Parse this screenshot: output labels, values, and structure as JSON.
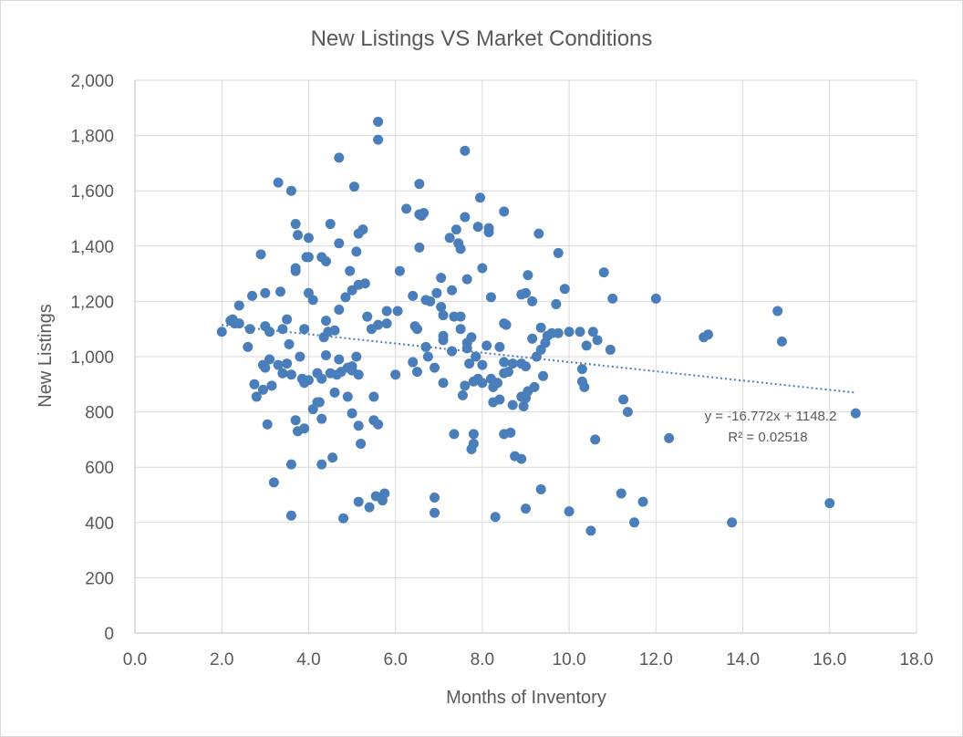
{
  "chart_data": {
    "type": "scatter",
    "title": "New Listings VS Market Conditions",
    "xlabel": "Months of Inventory",
    "ylabel": "New Listings",
    "xlim": [
      0,
      18
    ],
    "ylim": [
      0,
      2000
    ],
    "x_ticks": [
      "0.0",
      "2.0",
      "4.0",
      "6.0",
      "8.0",
      "10.0",
      "12.0",
      "14.0",
      "16.0",
      "18.0"
    ],
    "y_ticks": [
      "0",
      "200",
      "400",
      "600",
      "800",
      "1,000",
      "1,200",
      "1,400",
      "1,600",
      "1,800",
      "2,000"
    ],
    "x_tick_values": [
      0,
      2,
      4,
      6,
      8,
      10,
      12,
      14,
      16,
      18
    ],
    "y_tick_values": [
      0,
      200,
      400,
      600,
      800,
      1000,
      1200,
      1400,
      1600,
      1800,
      2000
    ],
    "grid": true,
    "legend": "none",
    "marker_color": "#4a7ebb",
    "trendline": {
      "type": "linear",
      "slope": -16.772,
      "intercept": 1148.2,
      "x_range": [
        2.0,
        16.6
      ],
      "color": "#4a7ebb",
      "equation_label": "y = -16.772x + 1148.2",
      "r2_label": "R² = 0.02518"
    },
    "points": [
      [
        2.0,
        1090
      ],
      [
        2.2,
        1130
      ],
      [
        2.25,
        1135
      ],
      [
        2.3,
        1120
      ],
      [
        2.4,
        1185
      ],
      [
        2.4,
        1120
      ],
      [
        2.6,
        1035
      ],
      [
        2.65,
        1100
      ],
      [
        2.7,
        1220
      ],
      [
        2.75,
        900
      ],
      [
        2.8,
        855
      ],
      [
        2.9,
        1370
      ],
      [
        2.95,
        970
      ],
      [
        2.95,
        880
      ],
      [
        3.0,
        960
      ],
      [
        3.0,
        1230
      ],
      [
        3.0,
        1110
      ],
      [
        3.05,
        755
      ],
      [
        3.1,
        1090
      ],
      [
        3.1,
        990
      ],
      [
        3.15,
        895
      ],
      [
        3.2,
        545
      ],
      [
        3.3,
        970
      ],
      [
        3.3,
        1630
      ],
      [
        3.35,
        1235
      ],
      [
        3.4,
        1100
      ],
      [
        3.4,
        940
      ],
      [
        3.5,
        1135
      ],
      [
        3.5,
        975
      ],
      [
        3.55,
        1045
      ],
      [
        3.6,
        1600
      ],
      [
        3.6,
        935
      ],
      [
        3.6,
        610
      ],
      [
        3.6,
        425
      ],
      [
        3.7,
        1480
      ],
      [
        3.7,
        1320
      ],
      [
        3.7,
        1310
      ],
      [
        3.7,
        770
      ],
      [
        3.75,
        1440
      ],
      [
        3.75,
        730
      ],
      [
        3.8,
        1000
      ],
      [
        3.85,
        920
      ],
      [
        3.9,
        1100
      ],
      [
        3.9,
        905
      ],
      [
        3.9,
        740
      ],
      [
        3.95,
        1360
      ],
      [
        4.0,
        1430
      ],
      [
        4.0,
        1360
      ],
      [
        4.0,
        1230
      ],
      [
        4.0,
        915
      ],
      [
        4.1,
        1205
      ],
      [
        4.1,
        810
      ],
      [
        4.2,
        940
      ],
      [
        4.2,
        835
      ],
      [
        4.25,
        835
      ],
      [
        4.3,
        1360
      ],
      [
        4.3,
        920
      ],
      [
        4.3,
        775
      ],
      [
        4.3,
        610
      ],
      [
        4.35,
        1070
      ],
      [
        4.4,
        1345
      ],
      [
        4.4,
        1130
      ],
      [
        4.4,
        1005
      ],
      [
        4.45,
        1090
      ],
      [
        4.5,
        1480
      ],
      [
        4.5,
        940
      ],
      [
        4.55,
        635
      ],
      [
        4.6,
        870
      ],
      [
        4.6,
        1095
      ],
      [
        4.65,
        935
      ],
      [
        4.7,
        1720
      ],
      [
        4.7,
        1410
      ],
      [
        4.7,
        1170
      ],
      [
        4.7,
        990
      ],
      [
        4.75,
        945
      ],
      [
        4.8,
        415
      ],
      [
        4.85,
        1215
      ],
      [
        4.9,
        960
      ],
      [
        4.9,
        855
      ],
      [
        4.95,
        1310
      ],
      [
        5.0,
        1240
      ],
      [
        5.0,
        965
      ],
      [
        5.0,
        950
      ],
      [
        5.0,
        795
      ],
      [
        5.05,
        1615
      ],
      [
        5.1,
        1380
      ],
      [
        5.1,
        1000
      ],
      [
        5.15,
        1260
      ],
      [
        5.15,
        1445
      ],
      [
        5.15,
        935
      ],
      [
        5.15,
        750
      ],
      [
        5.15,
        475
      ],
      [
        5.2,
        685
      ],
      [
        5.25,
        1460
      ],
      [
        5.3,
        1265
      ],
      [
        5.35,
        1145
      ],
      [
        5.4,
        455
      ],
      [
        5.45,
        1100
      ],
      [
        5.5,
        855
      ],
      [
        5.5,
        770
      ],
      [
        5.55,
        495
      ],
      [
        5.6,
        1850
      ],
      [
        5.6,
        1785
      ],
      [
        5.6,
        1115
      ],
      [
        5.6,
        755
      ],
      [
        5.7,
        480
      ],
      [
        5.75,
        505
      ],
      [
        5.8,
        1165
      ],
      [
        5.8,
        1120
      ],
      [
        6.0,
        935
      ],
      [
        6.05,
        1165
      ],
      [
        6.1,
        1310
      ],
      [
        6.25,
        1535
      ],
      [
        6.4,
        980
      ],
      [
        6.4,
        1220
      ],
      [
        6.45,
        1110
      ],
      [
        6.5,
        1100
      ],
      [
        6.5,
        945
      ],
      [
        6.55,
        1395
      ],
      [
        6.55,
        1625
      ],
      [
        6.55,
        1515
      ],
      [
        6.6,
        1510
      ],
      [
        6.65,
        1520
      ],
      [
        6.7,
        1205
      ],
      [
        6.7,
        1035
      ],
      [
        6.75,
        1000
      ],
      [
        6.8,
        1200
      ],
      [
        6.9,
        960
      ],
      [
        6.9,
        490
      ],
      [
        6.95,
        1230
      ],
      [
        6.9,
        435
      ],
      [
        7.05,
        1285
      ],
      [
        7.05,
        1180
      ],
      [
        7.1,
        1150
      ],
      [
        7.1,
        1075
      ],
      [
        7.1,
        1060
      ],
      [
        7.1,
        905
      ],
      [
        7.25,
        1430
      ],
      [
        7.3,
        1240
      ],
      [
        7.35,
        1145
      ],
      [
        7.35,
        720
      ],
      [
        7.3,
        1020
      ],
      [
        7.4,
        1460
      ],
      [
        7.45,
        1410
      ],
      [
        7.5,
        1390
      ],
      [
        7.5,
        1145
      ],
      [
        7.5,
        1100
      ],
      [
        7.55,
        860
      ],
      [
        7.6,
        1505
      ],
      [
        7.6,
        1745
      ],
      [
        7.6,
        895
      ],
      [
        7.65,
        1280
      ],
      [
        7.65,
        1050
      ],
      [
        7.65,
        1030
      ],
      [
        7.7,
        975
      ],
      [
        7.75,
        665
      ],
      [
        7.75,
        1070
      ],
      [
        7.8,
        685
      ],
      [
        7.8,
        720
      ],
      [
        7.8,
        910
      ],
      [
        7.85,
        1000
      ],
      [
        7.9,
        1470
      ],
      [
        7.9,
        920
      ],
      [
        7.95,
        1575
      ],
      [
        8.0,
        1320
      ],
      [
        8.0,
        970
      ],
      [
        8.0,
        905
      ],
      [
        8.1,
        1040
      ],
      [
        8.15,
        1450
      ],
      [
        8.15,
        1465
      ],
      [
        8.2,
        1215
      ],
      [
        8.2,
        920
      ],
      [
        8.25,
        835
      ],
      [
        8.25,
        890
      ],
      [
        8.3,
        420
      ],
      [
        8.35,
        905
      ],
      [
        8.4,
        1035
      ],
      [
        8.4,
        845
      ],
      [
        8.5,
        1525
      ],
      [
        8.5,
        1120
      ],
      [
        8.55,
        1115
      ],
      [
        8.5,
        980
      ],
      [
        8.5,
        940
      ],
      [
        8.5,
        720
      ],
      [
        8.6,
        945
      ],
      [
        8.65,
        725
      ],
      [
        8.7,
        975
      ],
      [
        8.7,
        825
      ],
      [
        8.75,
        640
      ],
      [
        8.9,
        975
      ],
      [
        8.9,
        855
      ],
      [
        8.9,
        630
      ],
      [
        8.9,
        1225
      ],
      [
        8.95,
        820
      ],
      [
        9.0,
        1230
      ],
      [
        9.0,
        965
      ],
      [
        9.0,
        850
      ],
      [
        9.0,
        450
      ],
      [
        9.05,
        1295
      ],
      [
        9.05,
        875
      ],
      [
        9.15,
        1200
      ],
      [
        9.15,
        1065
      ],
      [
        9.2,
        890
      ],
      [
        9.25,
        1000
      ],
      [
        9.3,
        1445
      ],
      [
        9.35,
        520
      ],
      [
        9.35,
        1105
      ],
      [
        9.35,
        1025
      ],
      [
        9.4,
        930
      ],
      [
        9.45,
        1050
      ],
      [
        9.5,
        1075
      ],
      [
        9.6,
        1085
      ],
      [
        9.7,
        1190
      ],
      [
        9.75,
        1375
      ],
      [
        9.75,
        1085
      ],
      [
        9.9,
        1245
      ],
      [
        10.0,
        1090
      ],
      [
        10.0,
        440
      ],
      [
        10.25,
        1090
      ],
      [
        10.3,
        955
      ],
      [
        10.3,
        910
      ],
      [
        10.35,
        890
      ],
      [
        10.4,
        1040
      ],
      [
        10.5,
        370
      ],
      [
        10.55,
        1090
      ],
      [
        10.6,
        700
      ],
      [
        10.65,
        1060
      ],
      [
        10.8,
        1305
      ],
      [
        10.95,
        1025
      ],
      [
        11.0,
        1210
      ],
      [
        11.2,
        505
      ],
      [
        11.25,
        845
      ],
      [
        11.35,
        800
      ],
      [
        11.5,
        400
      ],
      [
        11.7,
        475
      ],
      [
        12.0,
        1210
      ],
      [
        12.3,
        705
      ],
      [
        13.1,
        1070
      ],
      [
        13.2,
        1080
      ],
      [
        13.75,
        400
      ],
      [
        14.8,
        1165
      ],
      [
        14.9,
        1055
      ],
      [
        16.0,
        470
      ],
      [
        16.6,
        795
      ]
    ]
  }
}
